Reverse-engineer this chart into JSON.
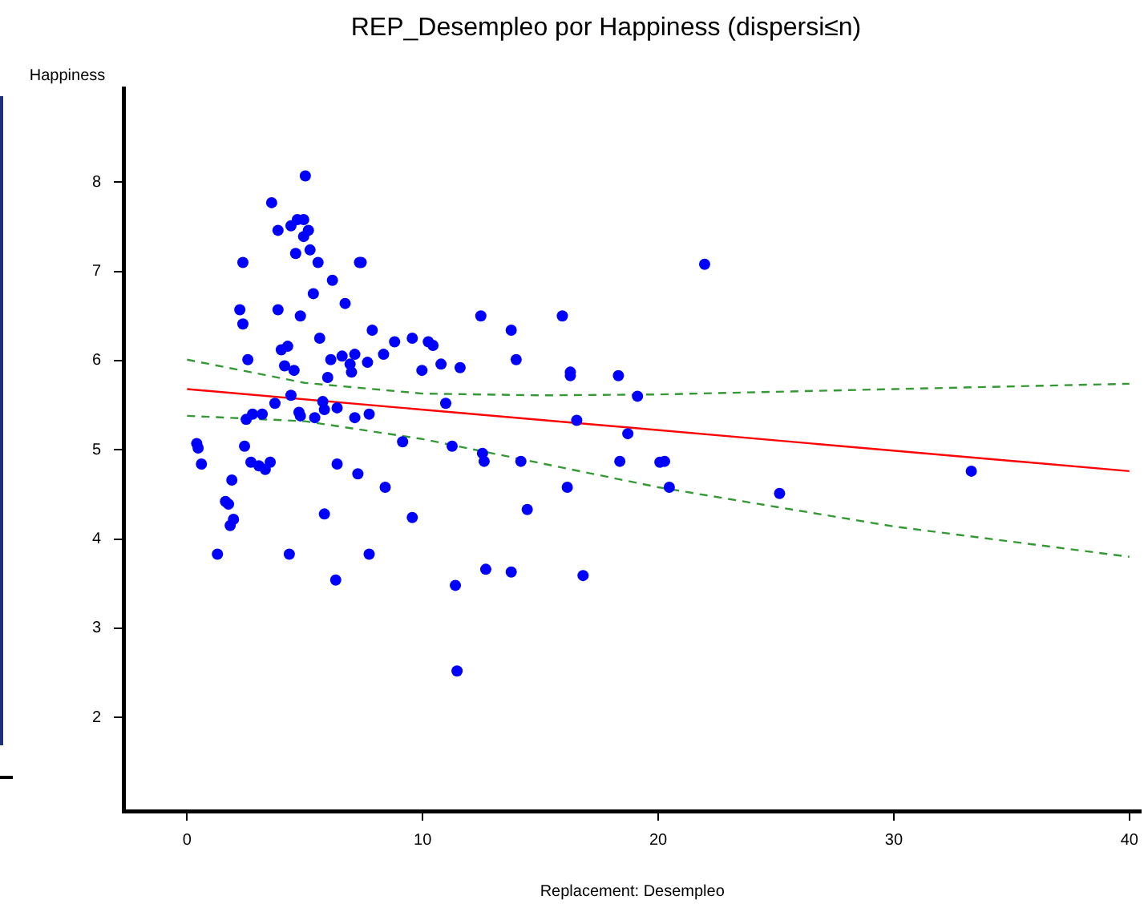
{
  "chart_data": {
    "type": "scatter",
    "title": "REP_Desempleo por Happiness (dispersi≤n)",
    "xlabel": "Replacement: Desempleo",
    "ylabel": "Happiness",
    "xlim": [
      -2.7,
      40.5
    ],
    "ylim": [
      0.95,
      9.05
    ],
    "xticks": [
      0,
      10,
      20,
      30,
      40
    ],
    "yticks": [
      2,
      3,
      4,
      5,
      6,
      7,
      8
    ],
    "grid": false,
    "legend": false,
    "marker": "circle",
    "series": [
      {
        "type": "scatter",
        "color": "#0000ff",
        "x": [
          0.41,
          0.47,
          0.61,
          1.29,
          1.63,
          1.76,
          1.83,
          1.97,
          1.9,
          2.24,
          2.37,
          2.44,
          2.37,
          2.51,
          2.71,
          2.58,
          2.78,
          3.05,
          3.19,
          3.32,
          3.53,
          3.59,
          3.73,
          3.86,
          4.0,
          4.14,
          3.86,
          4.27,
          4.34,
          4.41,
          4.41,
          4.54,
          4.61,
          4.68,
          4.75,
          4.81,
          4.81,
          4.95,
          4.95,
          5.02,
          5.15,
          5.22,
          5.36,
          5.42,
          5.56,
          5.63,
          5.76,
          5.83,
          5.97,
          6.1,
          5.83,
          6.17,
          6.31,
          6.37,
          6.37,
          6.58,
          6.71,
          6.92,
          6.98,
          7.12,
          7.12,
          7.25,
          7.32,
          7.39,
          7.66,
          7.73,
          7.73,
          7.86,
          8.34,
          8.41,
          8.81,
          9.15,
          9.56,
          9.56,
          9.97,
          10.24,
          10.44,
          10.78,
          10.98,
          11.25,
          11.39,
          11.46,
          11.59,
          12.47,
          12.54,
          12.61,
          12.68,
          13.76,
          13.76,
          13.97,
          14.17,
          14.44,
          15.93,
          16.14,
          16.27,
          16.27,
          16.54,
          16.81,
          18.31,
          18.37,
          18.71,
          19.12,
          20.07,
          20.27,
          20.47,
          21.97,
          25.15,
          33.29
        ],
        "values": [
          5.07,
          5.02,
          4.84,
          3.83,
          4.42,
          4.39,
          4.15,
          4.22,
          4.66,
          6.57,
          6.41,
          5.04,
          7.1,
          5.34,
          4.86,
          6.01,
          5.4,
          4.82,
          5.4,
          4.78,
          4.86,
          7.77,
          5.52,
          7.46,
          6.12,
          5.94,
          6.57,
          6.16,
          3.83,
          5.61,
          7.51,
          5.89,
          7.2,
          7.58,
          5.42,
          5.38,
          6.5,
          7.39,
          7.58,
          8.07,
          7.46,
          7.24,
          6.75,
          5.36,
          7.1,
          6.25,
          5.54,
          5.45,
          5.81,
          6.01,
          4.28,
          6.9,
          3.54,
          4.84,
          5.47,
          6.05,
          6.64,
          5.96,
          5.87,
          6.07,
          5.36,
          4.73,
          7.1,
          7.1,
          5.98,
          5.4,
          3.83,
          6.34,
          6.07,
          4.58,
          6.21,
          5.09,
          6.25,
          4.24,
          5.89,
          6.21,
          6.17,
          5.96,
          5.52,
          5.04,
          3.48,
          2.52,
          5.92,
          6.5,
          4.96,
          4.87,
          3.66,
          6.34,
          3.63,
          6.01,
          4.87,
          4.33,
          6.5,
          4.58,
          5.83,
          5.87,
          5.33,
          3.59,
          5.83,
          4.87,
          5.18,
          5.6,
          4.86,
          4.87,
          4.58,
          7.08,
          4.51,
          4.76
        ]
      },
      {
        "type": "line",
        "color": "#ff0000",
        "marker": "none",
        "line_style": "solid",
        "x": [
          0,
          40
        ],
        "values": [
          5.68,
          4.76
        ]
      },
      {
        "type": "line",
        "color": "#339933",
        "marker": "none",
        "line_style": "dashed",
        "x": [
          0,
          5,
          10,
          15,
          20,
          30,
          40
        ],
        "values": [
          6.01,
          5.75,
          5.63,
          5.61,
          5.62,
          5.68,
          5.74
        ]
      },
      {
        "type": "line",
        "color": "#339933",
        "marker": "none",
        "line_style": "dashed",
        "x": [
          0,
          5,
          10,
          15,
          20,
          30,
          40
        ],
        "values": [
          5.38,
          5.32,
          5.12,
          4.85,
          4.58,
          4.14,
          3.8
        ]
      }
    ]
  }
}
